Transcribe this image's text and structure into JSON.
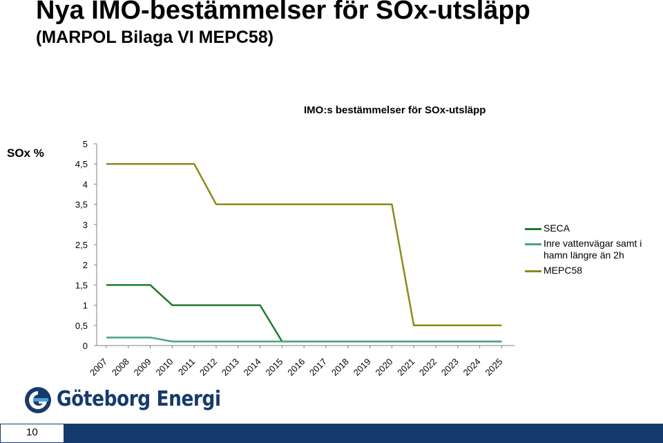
{
  "slide": {
    "title": "Nya IMO-bestämmelser för SOx-utsläpp",
    "subtitle": "(MARPOL Bilaga VI MEPC58)",
    "logo_text": "Göteborg Energi",
    "page_number": "10",
    "brand_color": "#163a6b"
  },
  "chart_data": {
    "type": "line",
    "title": "IMO:s bestämmelser för SOx-utsläpp",
    "ylabel": "SOx %",
    "xlabel": "",
    "ylim": [
      0,
      5
    ],
    "yticks": [
      0,
      0.5,
      1,
      1.5,
      2,
      2.5,
      3,
      3.5,
      4,
      4.5,
      5
    ],
    "ytick_labels": [
      "0",
      "0,5",
      "1",
      "1,5",
      "2",
      "2,5",
      "3",
      "3,5",
      "4",
      "4,5",
      "5"
    ],
    "categories": [
      "2007",
      "2008",
      "2009",
      "2010",
      "2011",
      "2012",
      "2013",
      "2014",
      "2015",
      "2016",
      "2017",
      "2018",
      "2019",
      "2020",
      "2021",
      "2022",
      "2023",
      "2024",
      "2025"
    ],
    "grid": false,
    "legend_position": "right",
    "series": [
      {
        "name": "SECA",
        "color": "#1e7a2e",
        "values": [
          1.5,
          1.5,
          1.5,
          1,
          1,
          1,
          1,
          1,
          0.1,
          0.1,
          0.1,
          0.1,
          0.1,
          0.1,
          0.1,
          0.1,
          0.1,
          0.1,
          0.1
        ]
      },
      {
        "name": "Inre vattenvägar samt i hamn längre än 2h",
        "color": "#4aa37c",
        "values": [
          0.2,
          0.2,
          0.2,
          0.1,
          0.1,
          0.1,
          0.1,
          0.1,
          0.1,
          0.1,
          0.1,
          0.1,
          0.1,
          0.1,
          0.1,
          0.1,
          0.1,
          0.1,
          0.1
        ]
      },
      {
        "name": "MEPC58",
        "color": "#8a8a1a",
        "values": [
          4.5,
          4.5,
          4.5,
          4.5,
          4.5,
          3.5,
          3.5,
          3.5,
          3.5,
          3.5,
          3.5,
          3.5,
          3.5,
          3.5,
          0.5,
          0.5,
          0.5,
          0.5,
          0.5
        ]
      }
    ]
  }
}
